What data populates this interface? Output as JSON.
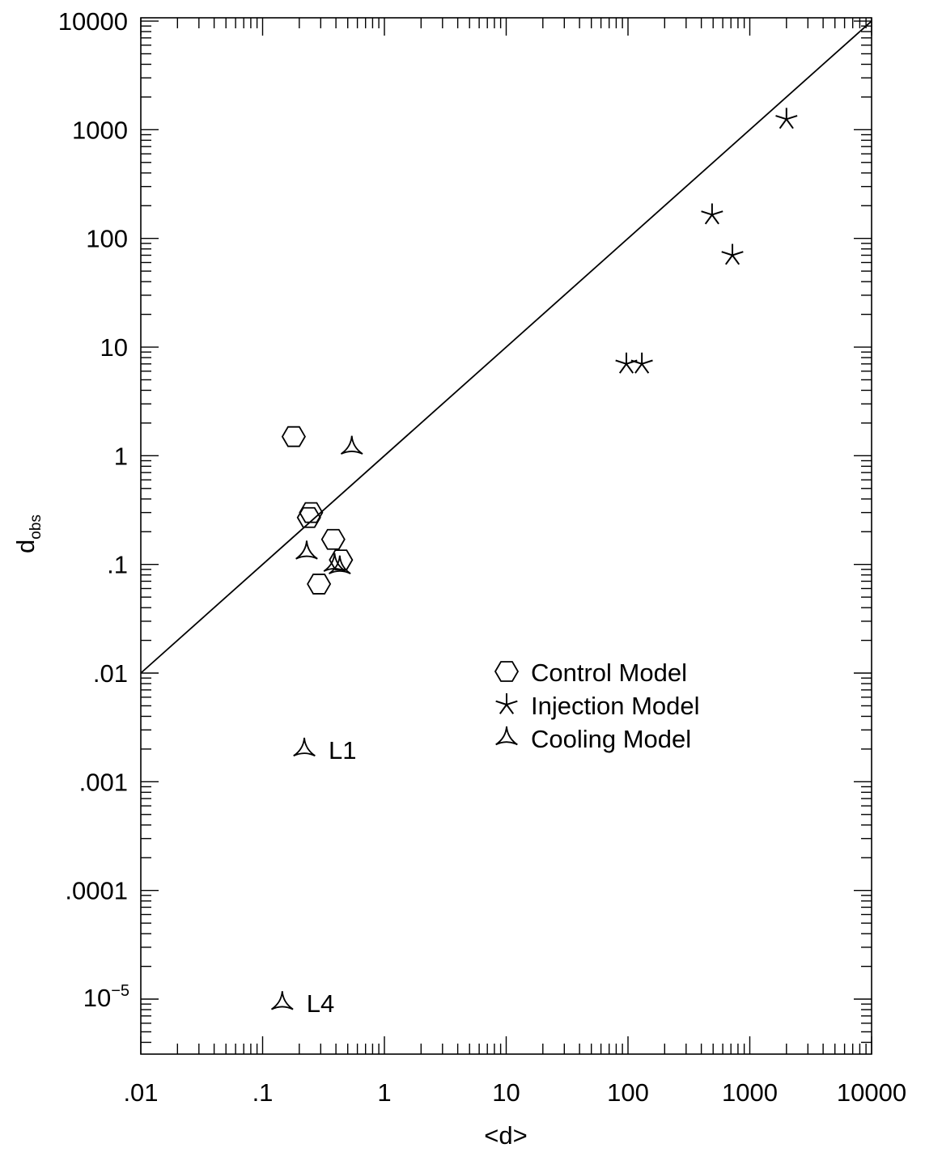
{
  "chart_data": {
    "type": "scatter",
    "title": "",
    "xlabel": "<d>",
    "ylabel": "d",
    "ylabel_subscript": "obs",
    "x_scale": "log",
    "y_scale": "log",
    "xlim": [
      0.01,
      10000
    ],
    "ylim": [
      3e-06,
      10000
    ],
    "x_ticks": [
      {
        "value": 0.01,
        "label": ".01"
      },
      {
        "value": 0.1,
        "label": ".1"
      },
      {
        "value": 1,
        "label": "1"
      },
      {
        "value": 10,
        "label": "10"
      },
      {
        "value": 100,
        "label": "100"
      },
      {
        "value": 1000,
        "label": "1000"
      },
      {
        "value": 10000,
        "label": "10000"
      }
    ],
    "y_ticks": [
      {
        "value": 1e-05,
        "label": "10",
        "sup": "−5"
      },
      {
        "value": 0.0001,
        "label": ".0001"
      },
      {
        "value": 0.001,
        "label": ".001"
      },
      {
        "value": 0.01,
        "label": ".01"
      },
      {
        "value": 0.1,
        "label": ".1"
      },
      {
        "value": 1,
        "label": "1"
      },
      {
        "value": 10,
        "label": "10"
      },
      {
        "value": 100,
        "label": "100"
      },
      {
        "value": 1000,
        "label": "1000"
      },
      {
        "value": 10000,
        "label": "10000"
      }
    ],
    "reference_line": {
      "x": [
        0.01,
        10000
      ],
      "y": [
        0.01,
        10000
      ]
    },
    "series": [
      {
        "name": "Control Model",
        "marker": "hexagon",
        "points": [
          {
            "x": 0.18,
            "y": 1.5
          },
          {
            "x": 0.25,
            "y": 0.3
          },
          {
            "x": 0.24,
            "y": 0.27
          },
          {
            "x": 0.38,
            "y": 0.17
          },
          {
            "x": 0.44,
            "y": 0.11
          },
          {
            "x": 0.29,
            "y": 0.066
          }
        ]
      },
      {
        "name": "Injection Model",
        "marker": "star",
        "points": [
          {
            "x": 2000,
            "y": 1250
          },
          {
            "x": 490,
            "y": 165
          },
          {
            "x": 720,
            "y": 70
          },
          {
            "x": 97,
            "y": 7
          },
          {
            "x": 130,
            "y": 7
          }
        ]
      },
      {
        "name": "Cooling Model",
        "marker": "tri",
        "points": [
          {
            "x": 0.54,
            "y": 1.2
          },
          {
            "x": 0.23,
            "y": 0.13
          },
          {
            "x": 0.39,
            "y": 0.1
          },
          {
            "x": 0.43,
            "y": 0.095
          },
          {
            "x": 0.22,
            "y": 0.002,
            "label": "L1"
          },
          {
            "x": 0.145,
            "y": 9.3e-06,
            "label": "L4"
          }
        ]
      }
    ],
    "legend": {
      "position": "center-right",
      "entries": [
        "Control Model",
        "Injection Model",
        "Cooling Model"
      ]
    }
  }
}
